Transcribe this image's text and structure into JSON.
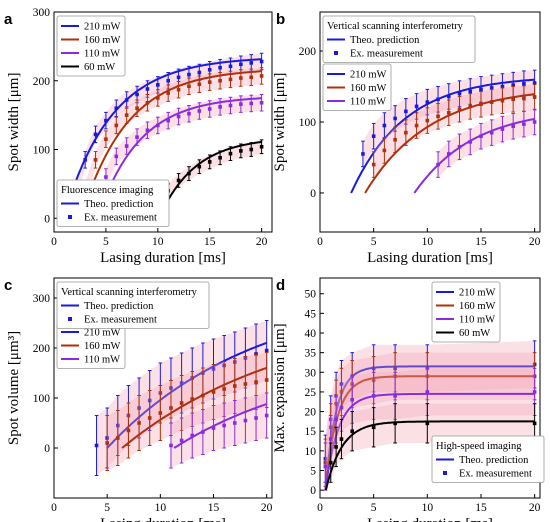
{
  "colors": {
    "s210": "#1a1adc",
    "s160": "#b0300a",
    "s110": "#8a2be2",
    "s60": "#000000",
    "band": "#f4a6b8"
  },
  "chart_data": [
    {
      "panel": "a",
      "type": "line",
      "xlabel": "Lasing duration [ms]",
      "ylabel": "Spot width [μm]",
      "xlim": [
        0,
        21
      ],
      "ylim": [
        -20,
        300
      ],
      "xticks": [
        "0",
        "5",
        "10",
        "15",
        "20"
      ],
      "yticks": [
        "0",
        "100",
        "200",
        "300"
      ],
      "ytick_vals": [
        0,
        100,
        200,
        300
      ],
      "legend_series": [
        "210 mW",
        "160 mW",
        "110 mW",
        "60 mW"
      ],
      "legend_kind": [
        "Fluorescence imaging",
        "Theo. prediction",
        "Ex. measurement"
      ],
      "series": [
        {
          "name": "210 mW",
          "color_key": "s210",
          "A": 235,
          "x0": 0.9,
          "tau": 4.6,
          "points": [
            [
              2,
              35
            ],
            [
              3,
              85
            ],
            [
              4,
              122
            ],
            [
              5,
              142
            ],
            [
              6,
              160
            ],
            [
              7,
              172
            ],
            [
              8,
              180
            ],
            [
              9,
              188
            ],
            [
              10,
              194
            ],
            [
              11,
              200
            ],
            [
              12,
              205
            ],
            [
              13,
              209
            ],
            [
              14,
              212
            ],
            [
              15,
              216
            ],
            [
              16,
              219
            ],
            [
              17,
              221
            ],
            [
              18,
              224
            ],
            [
              19,
              226
            ],
            [
              20,
              228
            ]
          ],
          "err": 12
        },
        {
          "name": "160 mW",
          "color_key": "s160",
          "A": 218,
          "x0": 2.6,
          "tau": 4.4,
          "points": [
            [
              3,
              40
            ],
            [
              4,
              85
            ],
            [
              5,
              115
            ],
            [
              6,
              135
            ],
            [
              7,
              150
            ],
            [
              8,
              160
            ],
            [
              9,
              168
            ],
            [
              10,
              175
            ],
            [
              11,
              182
            ],
            [
              12,
              187
            ],
            [
              13,
              192
            ],
            [
              14,
              195
            ],
            [
              15,
              198
            ],
            [
              16,
              200
            ],
            [
              17,
              202
            ],
            [
              18,
              204
            ],
            [
              19,
              205
            ],
            [
              20,
              207
            ]
          ],
          "err": 12
        },
        {
          "name": "110 mW",
          "color_key": "s110",
          "A": 178,
          "x0": 4.2,
          "tau": 4.0,
          "points": [
            [
              5,
              60
            ],
            [
              6,
              90
            ],
            [
              7,
              105
            ],
            [
              8,
              118
            ],
            [
              9,
              128
            ],
            [
              10,
              135
            ],
            [
              11,
              142
            ],
            [
              12,
              148
            ],
            [
              13,
              152
            ],
            [
              14,
              156
            ],
            [
              15,
              159
            ],
            [
              16,
              162
            ],
            [
              17,
              164
            ],
            [
              18,
              166
            ],
            [
              19,
              167
            ],
            [
              20,
              168
            ]
          ],
          "err": 12
        },
        {
          "name": "60 mW",
          "color_key": "s60",
          "A": 118,
          "x0": 10.1,
          "tau": 3.5,
          "points": [
            [
              11,
              40
            ],
            [
              12,
              55
            ],
            [
              13,
              65
            ],
            [
              14,
              75
            ],
            [
              15,
              82
            ],
            [
              16,
              88
            ],
            [
              17,
              94
            ],
            [
              18,
              98
            ],
            [
              19,
              100
            ],
            [
              20,
              104
            ]
          ],
          "err": 10
        }
      ]
    },
    {
      "panel": "b",
      "type": "line",
      "xlabel": "Lasing duration [ms]",
      "ylabel": "Spot width [μm]",
      "xlim": [
        0,
        20.5
      ],
      "ylim": [
        -55,
        255
      ],
      "xticks": [
        "0",
        "5",
        "10",
        "15",
        "20"
      ],
      "yticks": [
        "0",
        "100",
        "200"
      ],
      "ytick_vals": [
        0,
        100,
        200
      ],
      "legend_series": [
        "210 mW",
        "160 mW",
        "110 mW"
      ],
      "legend_kind": [
        "Vertical scanning interferometry",
        "Theo. prediction",
        "Ex. measurement"
      ],
      "series": [
        {
          "name": "210 mW",
          "color_key": "s210",
          "A": 165,
          "x0": 2.9,
          "tau": 5.0,
          "points": [
            [
              4,
              55
            ],
            [
              5,
              80
            ],
            [
              6,
              95
            ],
            [
              7,
              105
            ],
            [
              8,
              115
            ],
            [
              9,
              122
            ],
            [
              10,
              128
            ],
            [
              11,
              132
            ],
            [
              12,
              136
            ],
            [
              13,
              140
            ],
            [
              14,
              143
            ],
            [
              15,
              146
            ],
            [
              16,
              148
            ],
            [
              17,
              150
            ],
            [
              18,
              152
            ],
            [
              19,
              154
            ],
            [
              20,
              155
            ]
          ],
          "err": 18
        },
        {
          "name": "160 mW",
          "color_key": "s160",
          "A": 150,
          "x0": 4.2,
          "tau": 6.0,
          "points": [
            [
              5,
              40
            ],
            [
              6,
              60
            ],
            [
              7,
              75
            ],
            [
              8,
              85
            ],
            [
              9,
              95
            ],
            [
              10,
              102
            ],
            [
              11,
              108
            ],
            [
              12,
              113
            ],
            [
              13,
              118
            ],
            [
              14,
              122
            ],
            [
              15,
              125
            ],
            [
              16,
              128
            ],
            [
              17,
              130
            ],
            [
              18,
              132
            ],
            [
              19,
              133
            ],
            [
              20,
              135
            ]
          ],
          "err": 18
        },
        {
          "name": "110 mW",
          "color_key": "s110",
          "A": 120,
          "x0": 8.8,
          "tau": 5.5,
          "points": [
            [
              11,
              40
            ],
            [
              12,
              55
            ],
            [
              13,
              65
            ],
            [
              14,
              72
            ],
            [
              15,
              80
            ],
            [
              16,
              85
            ],
            [
              17,
              90
            ],
            [
              18,
              94
            ],
            [
              19,
              97
            ],
            [
              20,
              100
            ]
          ],
          "err": 18
        }
      ]
    },
    {
      "panel": "c",
      "type": "line",
      "xlabel": "Lasing duration [ms]",
      "ylabel": "Spot volume [μm³]",
      "xlim": [
        0,
        20.5
      ],
      "ylim": [
        -100,
        340
      ],
      "xticks": [
        "0",
        "5",
        "10",
        "15",
        "20"
      ],
      "yticks": [
        "0",
        "100",
        "200",
        "300"
      ],
      "ytick_vals": [
        0,
        100,
        200,
        300
      ],
      "legend_series": [
        "210 mW",
        "160 mW",
        "110 mW"
      ],
      "legend_kind": [
        "Vertical scanning interferometry",
        "Theo. prediction",
        "Ex. measurement"
      ],
      "series": [
        {
          "name": "210 mW",
          "color_key": "s210",
          "A": 320,
          "x0": 5.0,
          "tau": 14.0,
          "points": [
            [
              4,
              5
            ],
            [
              5,
              20
            ],
            [
              6,
              45
            ],
            [
              7,
              65
            ],
            [
              8,
              80
            ],
            [
              9,
              95
            ],
            [
              10,
              110
            ],
            [
              11,
              120
            ],
            [
              12,
              130
            ],
            [
              13,
              140
            ],
            [
              14,
              150
            ],
            [
              15,
              158
            ],
            [
              16,
              165
            ],
            [
              17,
              172
            ],
            [
              18,
              180
            ],
            [
              19,
              188
            ],
            [
              20,
              195
            ]
          ],
          "err": 60
        },
        {
          "name": "160 mW",
          "color_key": "s160",
          "A": 280,
          "x0": 6.4,
          "tau": 16.0,
          "points": [
            [
              5,
              10
            ],
            [
              6,
              20
            ],
            [
              7,
              35
            ],
            [
              8,
              50
            ],
            [
              9,
              60
            ],
            [
              10,
              70
            ],
            [
              11,
              80
            ],
            [
              12,
              90
            ],
            [
              13,
              98
            ],
            [
              14,
              105
            ],
            [
              15,
              112
            ],
            [
              16,
              118
            ],
            [
              17,
              124
            ],
            [
              18,
              128
            ],
            [
              19,
              132
            ],
            [
              20,
              136
            ]
          ],
          "err": 55
        },
        {
          "name": "110 mW",
          "color_key": "s110",
          "A": 190,
          "x0": 11.3,
          "tau": 14.0,
          "points": [
            [
              11,
              5
            ],
            [
              12,
              15
            ],
            [
              13,
              25
            ],
            [
              14,
              32
            ],
            [
              15,
              40
            ],
            [
              16,
              45
            ],
            [
              17,
              50
            ],
            [
              18,
              55
            ],
            [
              19,
              60
            ],
            [
              20,
              65
            ]
          ],
          "err": 45
        }
      ]
    },
    {
      "panel": "d",
      "type": "line",
      "xlabel": "Lasing duration [ms]",
      "ylabel": "Max. expansion [μm]",
      "xlim": [
        0,
        20.5
      ],
      "ylim": [
        -2,
        54
      ],
      "xticks": [
        "0",
        "5",
        "10",
        "15",
        "20"
      ],
      "yticks": [
        "0",
        "5",
        "10",
        "15",
        "20",
        "25",
        "30",
        "35",
        "40",
        "45",
        "50"
      ],
      "ytick_vals": [
        0,
        5,
        10,
        15,
        20,
        25,
        30,
        35,
        40,
        45,
        50
      ],
      "legend_series": [
        "210 mW",
        "160 mW",
        "110 mW",
        "60 mW"
      ],
      "legend_kind": [
        "High-speed imaging",
        "Theo. prediction",
        "Ex. measurement"
      ],
      "series": [
        {
          "name": "210 mW",
          "color_key": "s210",
          "A": 31.5,
          "x0": 0.5,
          "tau": 1.0,
          "points": [
            [
              0.5,
              8
            ],
            [
              1,
              18
            ],
            [
              1.5,
              24
            ],
            [
              2,
              27
            ],
            [
              3,
              29
            ],
            [
              5,
              31
            ],
            [
              7,
              31
            ],
            [
              10,
              31
            ],
            [
              20,
              32
            ]
          ],
          "err": 6
        },
        {
          "name": "160 mW",
          "color_key": "s160",
          "A": 29.0,
          "x0": 0.5,
          "tau": 1.1,
          "points": [
            [
              0.5,
              7
            ],
            [
              1,
              16
            ],
            [
              1.5,
              22
            ],
            [
              2,
              25
            ],
            [
              3,
              27
            ],
            [
              5,
              28
            ],
            [
              7,
              29
            ],
            [
              10,
              29
            ],
            [
              20,
              29
            ]
          ],
          "err": 6
        },
        {
          "name": "110 mW",
          "color_key": "s110",
          "A": 24.5,
          "x0": 0.5,
          "tau": 1.2,
          "points": [
            [
              0.5,
              6
            ],
            [
              1,
              13
            ],
            [
              1.5,
              18
            ],
            [
              2,
              21
            ],
            [
              3,
              23
            ],
            [
              5,
              24
            ],
            [
              7,
              24
            ],
            [
              10,
              25
            ],
            [
              20,
              25
            ]
          ],
          "err": 6
        },
        {
          "name": "60 mW",
          "color_key": "s60",
          "A": 17.5,
          "x0": 0.55,
          "tau": 1.5,
          "points": [
            [
              1,
              7
            ],
            [
              1.5,
              11
            ],
            [
              2,
              13
            ],
            [
              3,
              15
            ],
            [
              5,
              16
            ],
            [
              7,
              17
            ],
            [
              10,
              17
            ],
            [
              20,
              17
            ]
          ],
          "err": 5
        }
      ]
    }
  ]
}
